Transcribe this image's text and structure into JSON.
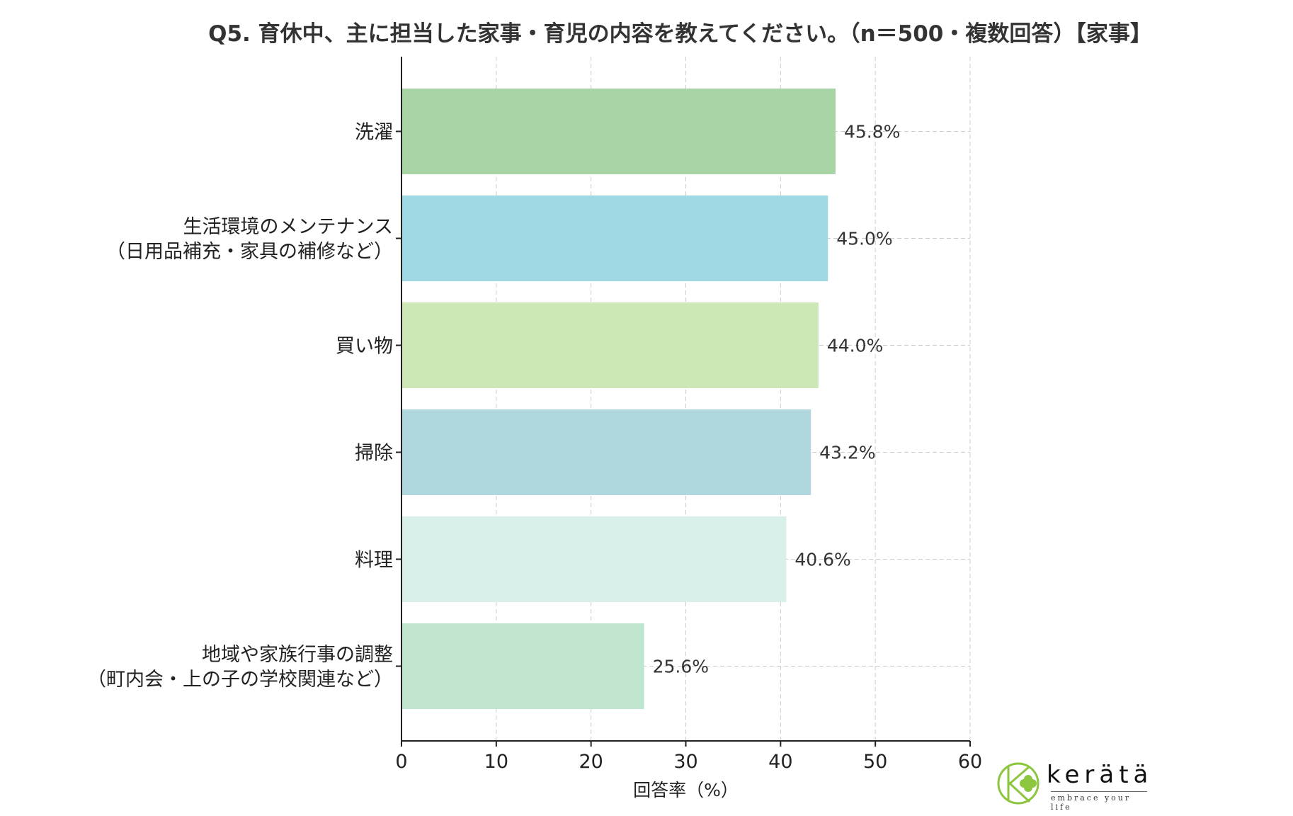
{
  "chart_data": {
    "type": "bar",
    "orientation": "horizontal",
    "title": "Q5. 育休中、主に担当した家事・育児の内容を教えてください。（n＝500・複数回答）【家事】",
    "xlabel": "回答率（%）",
    "ylabel": "",
    "xlim": [
      0,
      60
    ],
    "xticks": [
      "0",
      "10",
      "20",
      "30",
      "40",
      "50",
      "60"
    ],
    "grid": true,
    "categories": [
      [
        "洗濯"
      ],
      [
        "生活環境のメンテナンス",
        "（日用品補充・家具の補修など）"
      ],
      [
        "買い物"
      ],
      [
        "掃除"
      ],
      [
        "料理"
      ],
      [
        "地域や家族行事の調整",
        "（町内会・上の子の学校関連など）"
      ]
    ],
    "values": [
      45.8,
      45.0,
      44.0,
      43.2,
      40.6,
      25.6
    ],
    "value_labels": [
      "45.8%",
      "45.0%",
      "44.0%",
      "43.2%",
      "40.6%",
      "25.6%"
    ],
    "colors": [
      "#a8d4a6",
      "#a0d9e3",
      "#cde7b6",
      "#afd7dd",
      "#d8efea",
      "#c0e5cf"
    ]
  },
  "logo": {
    "name": "kerätä",
    "tagline": "embrace your life",
    "color": "#8cc63f"
  }
}
